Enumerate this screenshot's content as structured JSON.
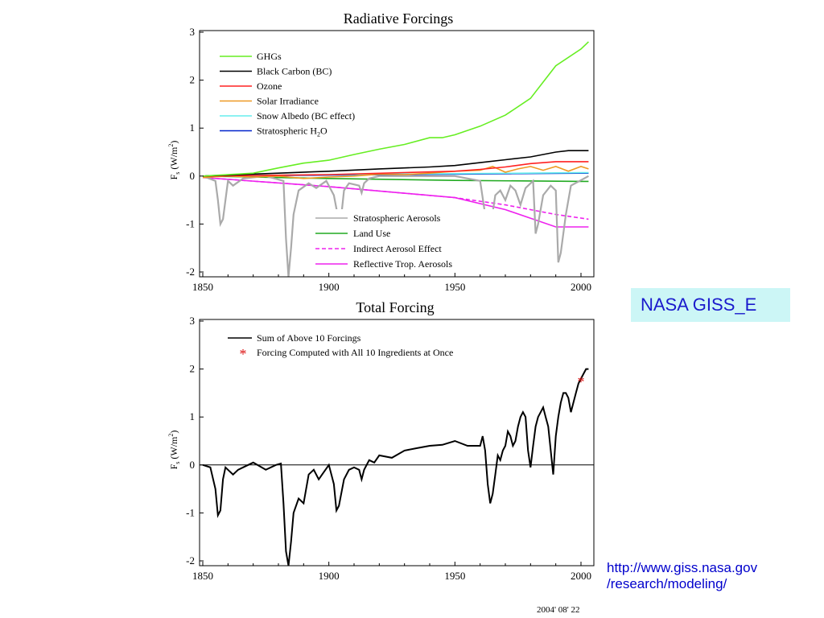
{
  "badge_label": "NASA GISS_E",
  "url_line1": "http://www.giss.nasa.gov",
  "url_line2": "/research/modeling/",
  "date_stamp": "2004' 08' 22",
  "chart_data": [
    {
      "type": "line",
      "title": "Radiative Forcings",
      "ylabel": "Fs (W/m2)",
      "ylim": [
        -2,
        3
      ],
      "xlim": [
        1850,
        2003
      ],
      "xticks": [
        "1850",
        "1900",
        "1950",
        "2000"
      ],
      "yticks": [
        "3",
        "2",
        "1",
        "0",
        "-1",
        "-2"
      ],
      "series": [
        {
          "name": "GHGs",
          "color": "#66ee22",
          "dash": false,
          "x": [
            1850,
            1870,
            1880,
            1890,
            1900,
            1910,
            1920,
            1930,
            1940,
            1945,
            1950,
            1960,
            1970,
            1980,
            1990,
            2000,
            2003
          ],
          "y": [
            0.0,
            0.06,
            0.17,
            0.27,
            0.33,
            0.45,
            0.56,
            0.66,
            0.8,
            0.8,
            0.86,
            1.04,
            1.27,
            1.62,
            2.3,
            2.65,
            2.8
          ]
        },
        {
          "name": "Black Carbon (BC)",
          "color": "#000000",
          "dash": false,
          "x": [
            1850,
            1880,
            1900,
            1920,
            1940,
            1950,
            1960,
            1970,
            1980,
            1990,
            1995,
            2003
          ],
          "y": [
            0.0,
            0.06,
            0.1,
            0.15,
            0.19,
            0.22,
            0.28,
            0.34,
            0.4,
            0.5,
            0.53,
            0.53
          ]
        },
        {
          "name": "Ozone",
          "color": "#ff2222",
          "dash": false,
          "x": [
            1850,
            1900,
            1950,
            1960,
            1970,
            1980,
            1990,
            2003
          ],
          "y": [
            0.0,
            0.03,
            0.1,
            0.14,
            0.19,
            0.26,
            0.3,
            0.3
          ]
        },
        {
          "name": "Solar Irradiance",
          "color": "#ee9922",
          "dash": false,
          "x": [
            1850,
            1860,
            1870,
            1880,
            1890,
            1900,
            1910,
            1920,
            1930,
            1940,
            1950,
            1960,
            1965,
            1970,
            1975,
            1980,
            1985,
            1990,
            1995,
            2000,
            2003
          ],
          "y": [
            -0.03,
            0.0,
            -0.02,
            0.0,
            -0.05,
            -0.02,
            0.0,
            0.04,
            0.03,
            0.06,
            0.1,
            0.12,
            0.2,
            0.08,
            0.15,
            0.2,
            0.12,
            0.2,
            0.1,
            0.2,
            0.15
          ]
        },
        {
          "name": "Snow Albedo (BC effect)",
          "color": "#66eeee",
          "dash": false,
          "x": [
            1850,
            1900,
            1950,
            2000,
            2003
          ],
          "y": [
            0.0,
            0.03,
            0.05,
            0.07,
            0.07
          ]
        },
        {
          "name": "Stratospheric H2O",
          "color": "#0022cc",
          "dash": false,
          "x": [
            1850,
            1900,
            1950,
            2000,
            2003
          ],
          "y": [
            0.0,
            0.02,
            0.04,
            0.06,
            0.06
          ]
        },
        {
          "name": "Stratospheric Aerosols",
          "color": "#aaaaaa",
          "dash": false,
          "x": [
            1850,
            1855,
            1856,
            1857,
            1858,
            1860,
            1862,
            1866,
            1875,
            1882,
            1883,
            1884,
            1885,
            1886,
            1888,
            1892,
            1895,
            1899,
            1902,
            1904,
            1905,
            1906,
            1908,
            1912,
            1913,
            1914,
            1916,
            1920,
            1930,
            1940,
            1950,
            1960,
            1962,
            1963,
            1964,
            1966,
            1968,
            1970,
            1972,
            1974,
            1976,
            1978,
            1981,
            1982,
            1983,
            1985,
            1988,
            1990,
            1991,
            1992,
            1994,
            1996,
            2003
          ],
          "y": [
            0.0,
            -0.1,
            -0.5,
            -1.0,
            -0.9,
            -0.1,
            -0.2,
            -0.05,
            0.0,
            -0.1,
            -1.3,
            -2.1,
            -1.5,
            -0.8,
            -0.3,
            -0.15,
            -0.25,
            -0.1,
            -0.4,
            -0.95,
            -0.8,
            -0.3,
            -0.15,
            -0.2,
            -0.35,
            -0.15,
            -0.05,
            0.0,
            0.0,
            0.0,
            0.0,
            -0.1,
            -0.8,
            -1.3,
            -1.1,
            -0.4,
            -0.3,
            -0.5,
            -0.2,
            -0.3,
            -0.6,
            -0.25,
            -0.1,
            -1.2,
            -1.0,
            -0.4,
            -0.2,
            -0.3,
            -1.8,
            -1.6,
            -0.8,
            -0.2,
            0.0
          ]
        },
        {
          "name": "Land Use",
          "color": "#22aa22",
          "dash": false,
          "x": [
            1850,
            1900,
            1950,
            2000,
            2003
          ],
          "y": [
            0.0,
            -0.05,
            -0.09,
            -0.11,
            -0.11
          ]
        },
        {
          "name": "Indirect Aerosol Effect",
          "color": "#ee22ee",
          "dash": true,
          "x": [
            1850,
            1900,
            1950,
            1970,
            1990,
            2003
          ],
          "y": [
            -0.03,
            -0.22,
            -0.45,
            -0.6,
            -0.8,
            -0.9
          ]
        },
        {
          "name": "Reflective Trop. Aerosols",
          "color": "#ee22ee",
          "dash": false,
          "x": [
            1850,
            1900,
            1950,
            1970,
            1990,
            2003
          ],
          "y": [
            -0.03,
            -0.22,
            -0.45,
            -0.7,
            -1.06,
            -1.06
          ]
        }
      ],
      "legend_top": [
        "GHGs",
        "Black Carbon (BC)",
        "Ozone",
        "Solar Irradiance",
        "Snow Albedo (BC effect)",
        "Stratospheric H2O"
      ],
      "legend_bottom": [
        "Stratospheric Aerosols",
        "Land Use",
        "Indirect Aerosol Effect",
        "Reflective Trop. Aerosols"
      ],
      "legend_position": "top-left and bottom-center"
    },
    {
      "type": "line",
      "title": "Total Forcing",
      "ylabel": "Fs (W/m2)",
      "ylim": [
        -2,
        3
      ],
      "xlim": [
        1850,
        2003
      ],
      "xticks": [
        "1850",
        "1900",
        "1950",
        "2000"
      ],
      "yticks": [
        "3",
        "2",
        "1",
        "0",
        "-1",
        "-2"
      ],
      "zero_line": true,
      "series": [
        {
          "name": "Sum of Above 10 Forcings",
          "color": "#000000",
          "x": [
            1850,
            1853,
            1855,
            1856,
            1857,
            1858,
            1859,
            1860,
            1862,
            1864,
            1866,
            1870,
            1875,
            1879,
            1881,
            1882,
            1883,
            1884,
            1885,
            1886,
            1888,
            1890,
            1892,
            1894,
            1896,
            1898,
            1900,
            1902,
            1903,
            1904,
            1906,
            1908,
            1910,
            1912,
            1913,
            1914,
            1916,
            1918,
            1920,
            1925,
            1930,
            1935,
            1940,
            1945,
            1950,
            1955,
            1960,
            1961,
            1962,
            1963,
            1964,
            1965,
            1966,
            1967,
            1968,
            1969,
            1970,
            1971,
            1972,
            1973,
            1974,
            1975,
            1976,
            1977,
            1978,
            1979,
            1980,
            1981,
            1982,
            1983,
            1984,
            1985,
            1986,
            1987,
            1988,
            1989,
            1990,
            1991,
            1992,
            1993,
            1994,
            1995,
            1996,
            1997,
            1998,
            1999,
            2000,
            2001,
            2002,
            2003
          ],
          "y": [
            0.0,
            -0.05,
            -0.5,
            -1.05,
            -0.95,
            -0.3,
            -0.05,
            -0.1,
            -0.2,
            -0.1,
            -0.05,
            0.05,
            -0.1,
            0.0,
            0.03,
            -0.8,
            -1.8,
            -2.1,
            -1.6,
            -1.0,
            -0.7,
            -0.8,
            -0.2,
            -0.1,
            -0.3,
            -0.15,
            0.0,
            -0.4,
            -0.95,
            -0.85,
            -0.3,
            -0.1,
            -0.05,
            -0.1,
            -0.3,
            -0.1,
            0.1,
            0.05,
            0.2,
            0.15,
            0.3,
            0.35,
            0.4,
            0.42,
            0.5,
            0.4,
            0.4,
            0.6,
            0.3,
            -0.4,
            -0.8,
            -0.6,
            -0.2,
            0.2,
            0.1,
            0.3,
            0.4,
            0.7,
            0.6,
            0.4,
            0.5,
            0.8,
            1.0,
            1.1,
            1.0,
            0.3,
            -0.05,
            0.4,
            0.8,
            1.0,
            1.1,
            1.2,
            1.0,
            0.8,
            0.3,
            -0.2,
            0.6,
            1.0,
            1.3,
            1.5,
            1.5,
            1.4,
            1.1,
            1.3,
            1.5,
            1.7,
            1.8,
            1.9,
            2.0,
            2.0
          ]
        },
        {
          "name": "Forcing Computed with All 10 Ingredients at Once",
          "color": "#dd1111",
          "marker": "*",
          "x": [
            2000
          ],
          "y": [
            1.75
          ]
        }
      ],
      "legend_position": "top-left"
    }
  ]
}
